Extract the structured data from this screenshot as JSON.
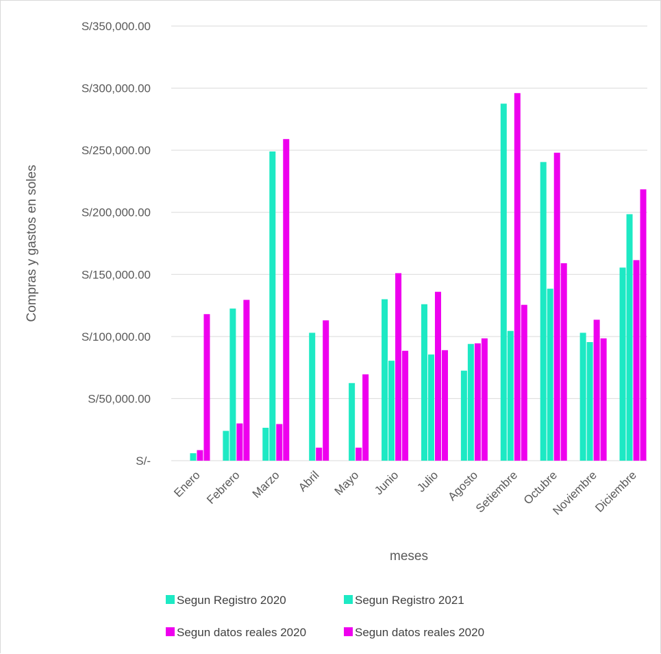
{
  "chart_data": {
    "type": "bar",
    "title": "",
    "xlabel": "meses",
    "ylabel": "Compras y gastos en soles",
    "ylim": [
      0,
      350000
    ],
    "ytick_values": [
      0,
      50000,
      100000,
      150000,
      200000,
      250000,
      300000,
      350000
    ],
    "ytick_labels": [
      "S/-",
      "S/50,000.00",
      "S/100,000.00",
      "S/150,000.00",
      "S/200,000.00",
      "S/250,000.00",
      "S/300,000.00",
      "S/350,000.00"
    ],
    "categories": [
      "Enero",
      "Febrero",
      "Marzo",
      "Abril",
      "Mayo",
      "Junio",
      "Julio",
      "Agosto",
      "Setiembre",
      "Octubre",
      "Noviembre",
      "Diciembre"
    ],
    "series": [
      {
        "name": "Segun Registro 2020",
        "color": "#1de9c4",
        "values": [
          0,
          24000,
          26500,
          0,
          0,
          130000,
          126000,
          72500,
          287500,
          240500,
          103000,
          155500
        ]
      },
      {
        "name": "Segun Registro 2021",
        "color": "#1de9c4",
        "values": [
          6000,
          122500,
          249000,
          103000,
          62500,
          80500,
          85500,
          94000,
          104500,
          138500,
          95500,
          198500
        ]
      },
      {
        "name": "Segun datos reales 2020",
        "color": "#ee00ee",
        "values": [
          8500,
          30000,
          29500,
          10500,
          10500,
          151000,
          136000,
          94500,
          296000,
          248000,
          113500,
          161500
        ]
      },
      {
        "name": "Segun datos reales 2020",
        "color": "#ee00ee",
        "values": [
          118000,
          129500,
          259000,
          113000,
          69500,
          88500,
          89000,
          98500,
          125500,
          159000,
          98500,
          218500
        ]
      }
    ],
    "grid": true,
    "legend": "bottom"
  }
}
